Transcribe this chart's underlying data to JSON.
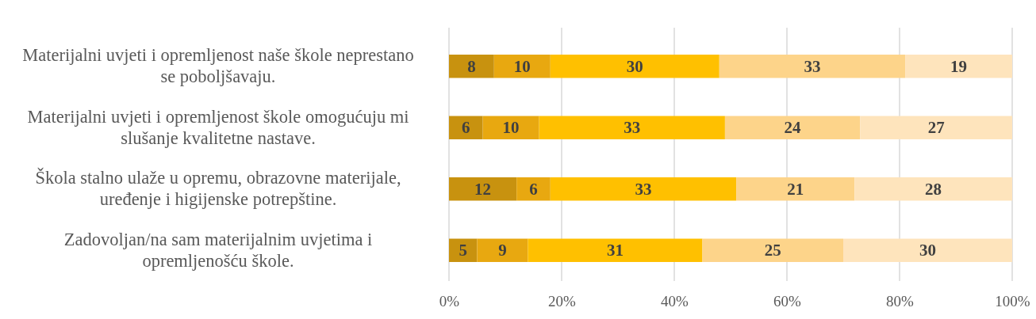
{
  "chart_data": {
    "type": "bar",
    "orientation": "horizontal",
    "stacked": true,
    "data_labels": true,
    "grid": "x",
    "categories": [
      "Materijalni uvjeti i opremljenost naše škole neprestano se poboljšavaju.",
      "Materijalni uvjeti i opremljenost škole omogućuju mi slušanje kvalitetne nastave.",
      "Škola stalno ulaže u opremu, obrazovne materijale, uređenje i higijenske potrepštine.",
      "Zadovoljan/na sam materijalnim uvjetima i opremljenošću škole."
    ],
    "series": [
      {
        "color": "#c8920f",
        "values": [
          8,
          6,
          12,
          5
        ]
      },
      {
        "color": "#e8a810",
        "values": [
          10,
          10,
          6,
          9
        ]
      },
      {
        "color": "#ffc000",
        "values": [
          30,
          33,
          33,
          31
        ]
      },
      {
        "color": "#fdd48a",
        "values": [
          33,
          24,
          21,
          25
        ]
      },
      {
        "color": "#fee4bc",
        "values": [
          19,
          27,
          28,
          30
        ]
      }
    ],
    "xlim": [
      0,
      100
    ],
    "xticks": [
      {
        "value": 0,
        "label": "0%"
      },
      {
        "value": 20,
        "label": "20%"
      },
      {
        "value": 40,
        "label": "40%"
      },
      {
        "value": 60,
        "label": "60%"
      },
      {
        "value": 80,
        "label": "80%"
      },
      {
        "value": 100,
        "label": "100%"
      }
    ]
  }
}
